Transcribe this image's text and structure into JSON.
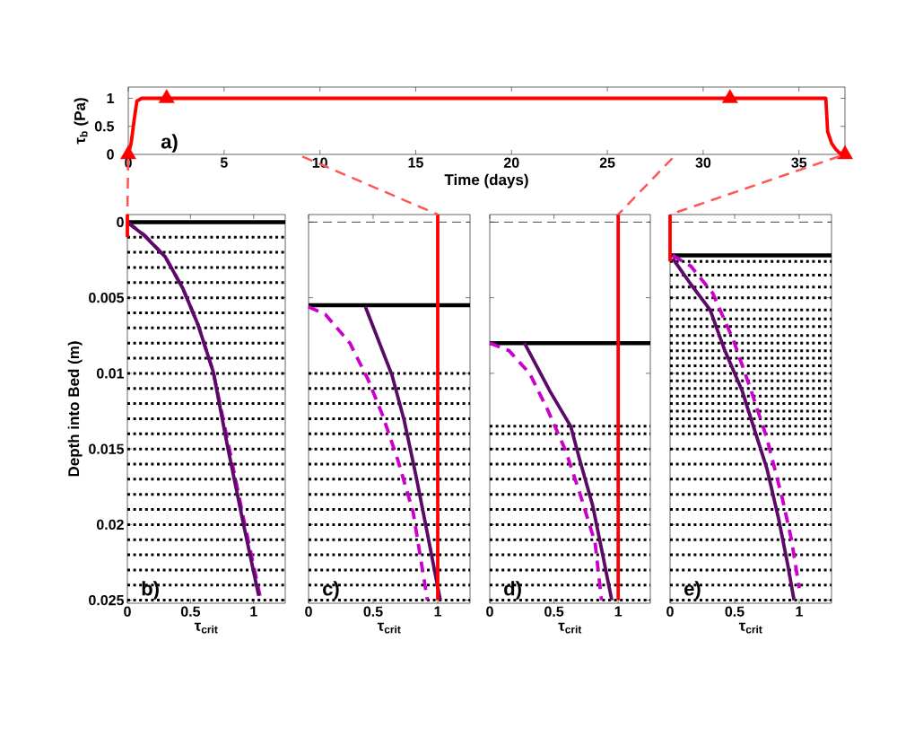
{
  "chart_data": [
    {
      "type": "line",
      "xlabel": "Time (days)",
      "ylabel": "τ$_{b}$ (Pa)",
      "annotations": [
        "a)"
      ],
      "xlim": [
        0,
        37.4
      ],
      "ylim": [
        0,
        1.2
      ],
      "xticks": [
        0,
        5,
        10,
        15,
        20,
        25,
        30,
        35
      ],
      "yticks": [
        0,
        0.5,
        1
      ],
      "series": [
        {
          "color": "#ff0000",
          "x": [
            0,
            0.15,
            0.3,
            0.45,
            0.7,
            36.4,
            36.5,
            36.7,
            36.9,
            37.1,
            37.4
          ],
          "values": [
            0,
            0.2,
            0.6,
            0.95,
            1,
            1,
            0.4,
            0.2,
            0.1,
            0.03,
            0
          ]
        },
        {
          "type": "scatter",
          "marker": "triangle",
          "color": "#ff0000",
          "x": [
            0,
            2.0,
            31.4,
            37.4
          ],
          "values": [
            0,
            1,
            1,
            0
          ]
        }
      ]
    },
    {
      "type": "line",
      "xlabel": "τ$_{crit}$",
      "ylabel": "Depth into Bed (m)",
      "annotations": [
        "b)"
      ],
      "xlim": [
        0,
        1.25
      ],
      "ylim": [
        0.0252,
        -0.0005
      ],
      "xticks": [
        0,
        0.5,
        1
      ],
      "yticks": [
        0,
        0.005,
        0.01,
        0.015,
        0.02,
        0.025
      ],
      "series": [
        {
          "color": "#cc00cc",
          "line_style": "dashed",
          "x": [
            0,
            0.14,
            0.3,
            0.44,
            0.56,
            0.68,
            0.8,
            0.92,
            1.05
          ],
          "values": [
            0,
            0.0009,
            0.0023,
            0.0044,
            0.0068,
            0.0099,
            0.0147,
            0.0196,
            0.0247
          ]
        },
        {
          "color": "#5c0a68",
          "x": [
            0,
            0.136,
            0.3,
            0.44,
            0.56,
            0.68,
            0.79,
            0.91,
            1.04
          ],
          "values": [
            0,
            0.0009,
            0.0023,
            0.0044,
            0.0068,
            0.0099,
            0.0147,
            0.0196,
            0.0247
          ]
        },
        {
          "color": "#ff0000",
          "x": [
            0,
            0
          ],
          "values": [
            -0.0005,
            0.001
          ]
        }
      ],
      "ref_lines": [
        {
          "axis": "y",
          "value": 0.001,
          "line_style": "dotted",
          "color": "#000000"
        },
        {
          "axis": "y",
          "value": 0.002,
          "line_style": "dotted",
          "color": "#000000"
        },
        {
          "axis": "y",
          "value": 0.003,
          "line_style": "dotted",
          "color": "#000000"
        },
        {
          "axis": "y",
          "value": 0.004,
          "line_style": "dotted",
          "color": "#000000"
        },
        {
          "axis": "y",
          "value": 0.005,
          "line_style": "dotted",
          "color": "#000000"
        },
        {
          "axis": "y",
          "value": 0.006,
          "line_style": "dotted",
          "color": "#000000"
        },
        {
          "axis": "y",
          "value": 0.007,
          "line_style": "dotted",
          "color": "#000000"
        },
        {
          "axis": "y",
          "value": 0.008,
          "line_style": "dotted",
          "color": "#000000"
        },
        {
          "axis": "y",
          "value": 0.009,
          "line_style": "dotted",
          "color": "#000000"
        },
        {
          "axis": "y",
          "value": 0.01,
          "line_style": "dotted",
          "color": "#000000"
        },
        {
          "axis": "y",
          "value": 0.011,
          "line_style": "dotted",
          "color": "#000000"
        },
        {
          "axis": "y",
          "value": 0.012,
          "line_style": "dotted",
          "color": "#000000"
        },
        {
          "axis": "y",
          "value": 0.013,
          "line_style": "dotted",
          "color": "#000000"
        },
        {
          "axis": "y",
          "value": 0.014,
          "line_style": "dotted",
          "color": "#000000"
        },
        {
          "axis": "y",
          "value": 0.015,
          "line_style": "dotted",
          "color": "#000000"
        },
        {
          "axis": "y",
          "value": 0.016,
          "line_style": "dotted",
          "color": "#000000"
        },
        {
          "axis": "y",
          "value": 0.017,
          "line_style": "dotted",
          "color": "#000000"
        },
        {
          "axis": "y",
          "value": 0.018,
          "line_style": "dotted",
          "color": "#000000"
        },
        {
          "axis": "y",
          "value": 0.019,
          "line_style": "dotted",
          "color": "#000000"
        },
        {
          "axis": "y",
          "value": 0.02,
          "line_style": "dotted",
          "color": "#000000"
        },
        {
          "axis": "y",
          "value": 0.021,
          "line_style": "dotted",
          "color": "#000000"
        },
        {
          "axis": "y",
          "value": 0.022,
          "line_style": "dotted",
          "color": "#000000"
        },
        {
          "axis": "y",
          "value": 0.023,
          "line_style": "dotted",
          "color": "#000000"
        },
        {
          "axis": "y",
          "value": 0.024,
          "line_style": "dotted",
          "color": "#000000"
        },
        {
          "axis": "y",
          "value": 0.025,
          "line_style": "dotted",
          "color": "#000000"
        },
        {
          "axis": "y",
          "value": 0,
          "line_style": "solid",
          "color": "#000000"
        }
      ]
    },
    {
      "type": "line",
      "xlabel": "τ$_{crit}$",
      "annotations": [
        "c)"
      ],
      "xlim": [
        0,
        1.25
      ],
      "ylim": [
        0.0252,
        -0.0005
      ],
      "xticks": [
        0,
        0.5,
        1
      ],
      "yticks": [
        0,
        0.005,
        0.01,
        0.015,
        0.02,
        0.025
      ],
      "tick_labels": "x",
      "series": [
        {
          "color": "#cc00cc",
          "line_style": "dashed",
          "x": [
            0,
            0.13,
            0.32,
            0.46,
            0.57,
            0.69,
            0.81,
            0.92
          ],
          "values": [
            0.0056,
            0.0061,
            0.008,
            0.0104,
            0.0127,
            0.0157,
            0.0192,
            0.025
          ]
        },
        {
          "color": "#5c0a68",
          "x": [
            0.44,
            0.645,
            0.74,
            0.83,
            0.92,
            1.02
          ],
          "values": [
            0.0056,
            0.0101,
            0.0131,
            0.0167,
            0.0206,
            0.025
          ]
        },
        {
          "color": "#ff0000",
          "x": [
            1,
            1
          ],
          "values": [
            -0.0005,
            0.025
          ]
        }
      ],
      "ref_lines": [
        {
          "axis": "y",
          "value": 0,
          "line_style": "dashed",
          "color": "#333333"
        },
        {
          "axis": "y",
          "value": 0.01,
          "line_style": "dotted",
          "color": "#000000"
        },
        {
          "axis": "y",
          "value": 0.011,
          "line_style": "dotted",
          "color": "#000000"
        },
        {
          "axis": "y",
          "value": 0.012,
          "line_style": "dotted",
          "color": "#000000"
        },
        {
          "axis": "y",
          "value": 0.013,
          "line_style": "dotted",
          "color": "#000000"
        },
        {
          "axis": "y",
          "value": 0.014,
          "line_style": "dotted",
          "color": "#000000"
        },
        {
          "axis": "y",
          "value": 0.015,
          "line_style": "dotted",
          "color": "#000000"
        },
        {
          "axis": "y",
          "value": 0.016,
          "line_style": "dotted",
          "color": "#000000"
        },
        {
          "axis": "y",
          "value": 0.017,
          "line_style": "dotted",
          "color": "#000000"
        },
        {
          "axis": "y",
          "value": 0.018,
          "line_style": "dotted",
          "color": "#000000"
        },
        {
          "axis": "y",
          "value": 0.019,
          "line_style": "dotted",
          "color": "#000000"
        },
        {
          "axis": "y",
          "value": 0.02,
          "line_style": "dotted",
          "color": "#000000"
        },
        {
          "axis": "y",
          "value": 0.021,
          "line_style": "dotted",
          "color": "#000000"
        },
        {
          "axis": "y",
          "value": 0.022,
          "line_style": "dotted",
          "color": "#000000"
        },
        {
          "axis": "y",
          "value": 0.023,
          "line_style": "dotted",
          "color": "#000000"
        },
        {
          "axis": "y",
          "value": 0.024,
          "line_style": "dotted",
          "color": "#000000"
        },
        {
          "axis": "y",
          "value": 0.025,
          "line_style": "dotted",
          "color": "#000000"
        },
        {
          "axis": "y",
          "value": 0.0055,
          "line_style": "solid",
          "color": "#000000"
        }
      ]
    },
    {
      "type": "line",
      "xlabel": "τ$_{crit}$",
      "annotations": [
        "d)"
      ],
      "xlim": [
        0,
        1.25
      ],
      "ylim": [
        0.0252,
        -0.0005
      ],
      "xticks": [
        0,
        0.5,
        1
      ],
      "yticks": [
        0,
        0.005,
        0.01,
        0.015,
        0.02,
        0.025
      ],
      "tick_labels": "x",
      "series": [
        {
          "color": "#cc00cc",
          "line_style": "dashed",
          "x": [
            0,
            0.15,
            0.31,
            0.45,
            0.59,
            0.7,
            0.82,
            0.87
          ],
          "values": [
            0.008,
            0.0085,
            0.01,
            0.0124,
            0.0151,
            0.0179,
            0.0212,
            0.025
          ]
        },
        {
          "color": "#5c0a68",
          "x": [
            0.27,
            0.47,
            0.63,
            0.7,
            0.8,
            0.87,
            0.95
          ],
          "values": [
            0.008,
            0.0112,
            0.0135,
            0.0157,
            0.0187,
            0.0216,
            0.025
          ]
        },
        {
          "color": "#ff0000",
          "x": [
            1,
            1
          ],
          "values": [
            -0.0005,
            0.025
          ]
        }
      ],
      "ref_lines": [
        {
          "axis": "y",
          "value": 0,
          "line_style": "dashed",
          "color": "#333333"
        },
        {
          "axis": "y",
          "value": 0.0135,
          "line_style": "dotted",
          "color": "#000000"
        },
        {
          "axis": "y",
          "value": 0.014,
          "line_style": "dotted",
          "color": "#000000"
        },
        {
          "axis": "y",
          "value": 0.015,
          "line_style": "dotted",
          "color": "#000000"
        },
        {
          "axis": "y",
          "value": 0.016,
          "line_style": "dotted",
          "color": "#000000"
        },
        {
          "axis": "y",
          "value": 0.017,
          "line_style": "dotted",
          "color": "#000000"
        },
        {
          "axis": "y",
          "value": 0.018,
          "line_style": "dotted",
          "color": "#000000"
        },
        {
          "axis": "y",
          "value": 0.019,
          "line_style": "dotted",
          "color": "#000000"
        },
        {
          "axis": "y",
          "value": 0.02,
          "line_style": "dotted",
          "color": "#000000"
        },
        {
          "axis": "y",
          "value": 0.021,
          "line_style": "dotted",
          "color": "#000000"
        },
        {
          "axis": "y",
          "value": 0.022,
          "line_style": "dotted",
          "color": "#000000"
        },
        {
          "axis": "y",
          "value": 0.023,
          "line_style": "dotted",
          "color": "#000000"
        },
        {
          "axis": "y",
          "value": 0.024,
          "line_style": "dotted",
          "color": "#000000"
        },
        {
          "axis": "y",
          "value": 0.025,
          "line_style": "dotted",
          "color": "#000000"
        },
        {
          "axis": "y",
          "value": 0.008,
          "line_style": "solid",
          "color": "#000000"
        }
      ]
    },
    {
      "type": "line",
      "xlabel": "τ$_{crit}$",
      "annotations": [
        "e)"
      ],
      "xlim": [
        0,
        1.25
      ],
      "ylim": [
        0.0252,
        -0.0005
      ],
      "xticks": [
        0,
        0.5,
        1
      ],
      "yticks": [
        0,
        0.005,
        0.01,
        0.015,
        0.02,
        0.025
      ],
      "tick_labels": "x",
      "series": [
        {
          "color": "#cc00cc",
          "line_style": "dashed",
          "x": [
            0.02,
            0.16,
            0.33,
            0.49,
            0.63,
            0.75,
            0.87,
            0.94,
            1.0
          ],
          "values": [
            0.0022,
            0.0029,
            0.0047,
            0.0078,
            0.0112,
            0.0143,
            0.0183,
            0.021,
            0.0242
          ]
        },
        {
          "color": "#5c0a68",
          "x": [
            0.02,
            0.16,
            0.31,
            0.42,
            0.56,
            0.66,
            0.75,
            0.84,
            0.91,
            0.96
          ],
          "values": [
            0.0024,
            0.0041,
            0.0058,
            0.0084,
            0.0112,
            0.0139,
            0.0163,
            0.0196,
            0.0226,
            0.025
          ]
        },
        {
          "color": "#ff0000",
          "x": [
            0,
            0
          ],
          "values": [
            -0.0005,
            0.0026
          ]
        }
      ],
      "ref_lines": [
        {
          "axis": "y",
          "value": 0,
          "line_style": "dashed",
          "color": "#333333"
        },
        {
          "axis": "y",
          "value": 0.0026,
          "line_style": "dotted",
          "color": "#000000"
        },
        {
          "axis": "y",
          "value": 0.0035,
          "line_style": "dotted",
          "color": "#000000"
        },
        {
          "axis": "y",
          "value": 0.0043,
          "line_style": "dotted",
          "color": "#000000"
        },
        {
          "axis": "y",
          "value": 0.005,
          "line_style": "dotted",
          "color": "#000000"
        },
        {
          "axis": "y",
          "value": 0.0058,
          "line_style": "dotted",
          "color": "#000000"
        },
        {
          "axis": "y",
          "value": 0.0064,
          "line_style": "dotted",
          "color": "#000000"
        },
        {
          "axis": "y",
          "value": 0.0069,
          "line_style": "dotted",
          "color": "#000000"
        },
        {
          "axis": "y",
          "value": 0.0075,
          "line_style": "dotted",
          "color": "#000000"
        },
        {
          "axis": "y",
          "value": 0.008,
          "line_style": "dotted",
          "color": "#000000"
        },
        {
          "axis": "y",
          "value": 0.0085,
          "line_style": "dotted",
          "color": "#000000"
        },
        {
          "axis": "y",
          "value": 0.009,
          "line_style": "dotted",
          "color": "#000000"
        },
        {
          "axis": "y",
          "value": 0.0095,
          "line_style": "dotted",
          "color": "#000000"
        },
        {
          "axis": "y",
          "value": 0.01,
          "line_style": "dotted",
          "color": "#000000"
        },
        {
          "axis": "y",
          "value": 0.0105,
          "line_style": "dotted",
          "color": "#000000"
        },
        {
          "axis": "y",
          "value": 0.011,
          "line_style": "dotted",
          "color": "#000000"
        },
        {
          "axis": "y",
          "value": 0.0115,
          "line_style": "dotted",
          "color": "#000000"
        },
        {
          "axis": "y",
          "value": 0.012,
          "line_style": "dotted",
          "color": "#000000"
        },
        {
          "axis": "y",
          "value": 0.0125,
          "line_style": "dotted",
          "color": "#000000"
        },
        {
          "axis": "y",
          "value": 0.013,
          "line_style": "dotted",
          "color": "#000000"
        },
        {
          "axis": "y",
          "value": 0.0135,
          "line_style": "dotted",
          "color": "#000000"
        },
        {
          "axis": "y",
          "value": 0.014,
          "line_style": "dotted",
          "color": "#000000"
        },
        {
          "axis": "y",
          "value": 0.015,
          "line_style": "dotted",
          "color": "#000000"
        },
        {
          "axis": "y",
          "value": 0.016,
          "line_style": "dotted",
          "color": "#000000"
        },
        {
          "axis": "y",
          "value": 0.017,
          "line_style": "dotted",
          "color": "#000000"
        },
        {
          "axis": "y",
          "value": 0.018,
          "line_style": "dotted",
          "color": "#000000"
        },
        {
          "axis": "y",
          "value": 0.019,
          "line_style": "dotted",
          "color": "#000000"
        },
        {
          "axis": "y",
          "value": 0.02,
          "line_style": "dotted",
          "color": "#000000"
        },
        {
          "axis": "y",
          "value": 0.021,
          "line_style": "dotted",
          "color": "#000000"
        },
        {
          "axis": "y",
          "value": 0.022,
          "line_style": "dotted",
          "color": "#000000"
        },
        {
          "axis": "y",
          "value": 0.023,
          "line_style": "dotted",
          "color": "#000000"
        },
        {
          "axis": "y",
          "value": 0.024,
          "line_style": "dotted",
          "color": "#000000"
        },
        {
          "axis": "y",
          "value": 0.025,
          "line_style": "dotted",
          "color": "#000000"
        },
        {
          "axis": "y",
          "value": 0.0022,
          "line_style": "solid",
          "color": "#000000"
        }
      ]
    }
  ]
}
